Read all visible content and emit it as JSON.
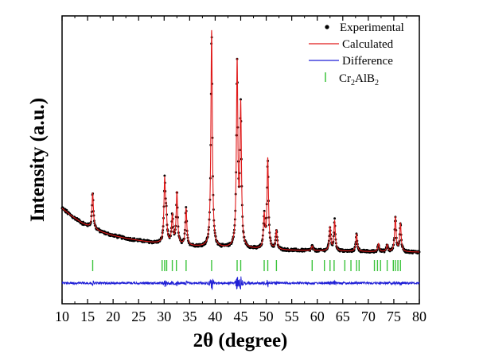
{
  "chart_data": {
    "type": "line",
    "title": "",
    "xlabel": "2θ (degree)",
    "ylabel": "Intensity (a.u.)",
    "xlim": [
      10,
      80
    ],
    "x_ticks": [
      10,
      15,
      20,
      25,
      30,
      35,
      40,
      45,
      50,
      55,
      60,
      65,
      70,
      75,
      80
    ],
    "y_tick_labels": false,
    "grid": false,
    "legend_position": "top-right",
    "legend": {
      "experimental": "Experimental",
      "calculated": "Calculated",
      "difference": "Difference",
      "bragg_prefix": "Cr",
      "bragg_sub1": "2",
      "bragg_mid": "AlB",
      "bragg_sub2": "2"
    },
    "series": [
      {
        "name": "Experimental",
        "style": "points",
        "color": "#000000"
      },
      {
        "name": "Calculated",
        "style": "line",
        "color": "#e01b1b"
      },
      {
        "name": "Difference",
        "style": "line",
        "color": "#1f1fd6"
      },
      {
        "name": "Cr2AlB2",
        "style": "ticks",
        "color": "#3cc43c"
      }
    ],
    "background": [
      [
        10,
        0.2
      ],
      [
        12,
        0.165
      ],
      [
        14,
        0.135
      ],
      [
        16,
        0.112
      ],
      [
        18,
        0.095
      ],
      [
        20,
        0.082
      ],
      [
        22,
        0.072
      ],
      [
        24,
        0.064
      ],
      [
        26,
        0.057
      ],
      [
        28,
        0.051
      ],
      [
        30,
        0.046
      ],
      [
        35,
        0.036
      ],
      [
        40,
        0.03
      ],
      [
        45,
        0.025
      ],
      [
        50,
        0.021
      ],
      [
        55,
        0.018
      ],
      [
        60,
        0.016
      ],
      [
        65,
        0.014
      ],
      [
        70,
        0.012
      ],
      [
        75,
        0.011
      ],
      [
        80,
        0.01
      ]
    ],
    "peaks": [
      {
        "position": 16.0,
        "intensity": 0.155
      },
      {
        "position": 30.1,
        "intensity": 0.26
      },
      {
        "position": 30.4,
        "intensity": 0.11
      },
      {
        "position": 31.6,
        "intensity": 0.12
      },
      {
        "position": 32.5,
        "intensity": 0.225
      },
      {
        "position": 34.3,
        "intensity": 0.16
      },
      {
        "position": 39.3,
        "intensity": 0.94
      },
      {
        "position": 44.3,
        "intensity": 0.79
      },
      {
        "position": 45.0,
        "intensity": 0.6
      },
      {
        "position": 49.6,
        "intensity": 0.14
      },
      {
        "position": 50.3,
        "intensity": 0.39
      },
      {
        "position": 52.0,
        "intensity": 0.08
      },
      {
        "position": 59.0,
        "intensity": 0.02
      },
      {
        "position": 62.5,
        "intensity": 0.1
      },
      {
        "position": 63.4,
        "intensity": 0.13
      },
      {
        "position": 67.7,
        "intensity": 0.075
      },
      {
        "position": 72.0,
        "intensity": 0.035
      },
      {
        "position": 73.7,
        "intensity": 0.03
      },
      {
        "position": 75.3,
        "intensity": 0.15
      },
      {
        "position": 76.3,
        "intensity": 0.12
      }
    ],
    "peak_width": 0.17,
    "bragg_positions": [
      16.0,
      29.6,
      30.1,
      30.5,
      31.6,
      32.4,
      34.3,
      39.3,
      44.3,
      45.0,
      49.6,
      50.3,
      52.0,
      59.0,
      61.4,
      62.5,
      63.3,
      65.4,
      66.6,
      67.7,
      68.2,
      71.2,
      71.8,
      72.4,
      73.7,
      74.9,
      75.3,
      75.8,
      76.3
    ]
  }
}
